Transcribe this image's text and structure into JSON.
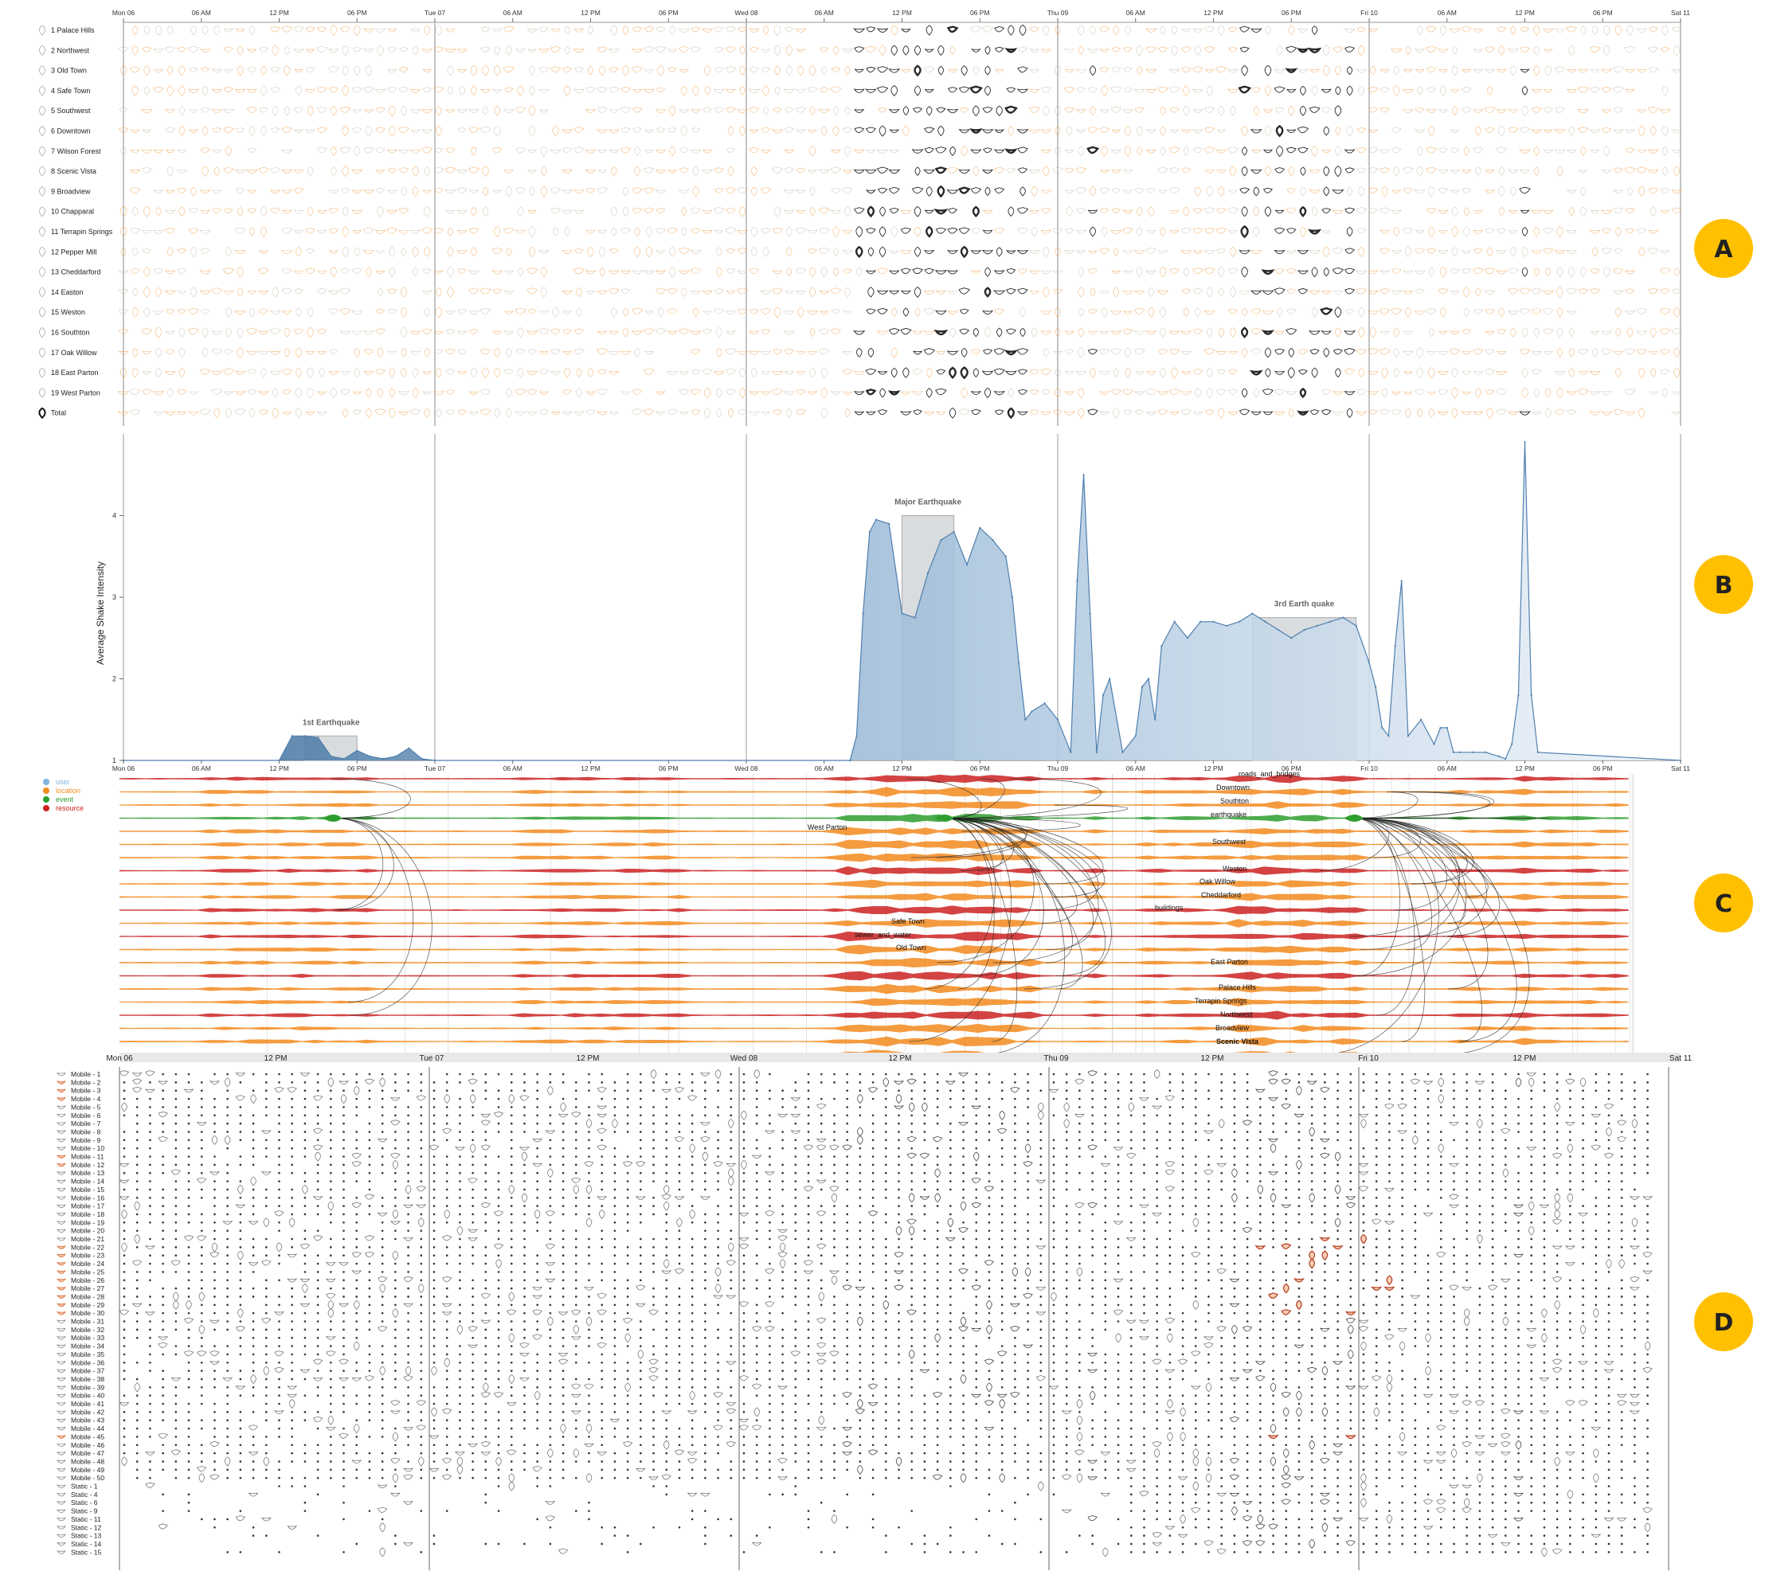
{
  "time_axis": {
    "ticks_full": [
      "Mon 06",
      "06 AM",
      "12 PM",
      "06 PM",
      "Tue 07",
      "06 AM",
      "12 PM",
      "06 PM",
      "Wed 08",
      "06 AM",
      "12 PM",
      "06 PM",
      "Thu 09",
      "06 AM",
      "12 PM",
      "06 PM",
      "Fri 10",
      "06 AM",
      "12 PM",
      "06 PM",
      "Sat 11"
    ],
    "ticks_c": [
      "Mon 06",
      "12 PM",
      "Tue 07",
      "12 PM",
      "Wed 08",
      "12 PM",
      "Thu 09",
      "12 PM",
      "Fri 10",
      "12 PM",
      "Sat 11"
    ],
    "ticks_c_hours": [
      0,
      12,
      24,
      36,
      48,
      60,
      72,
      84,
      96,
      108,
      120
    ]
  },
  "panel_a": {
    "badge": "A",
    "rows": [
      "1 Palace Hills",
      "2 Northwest",
      "3 Old Town",
      "4 Safe Town",
      "5 Southwest",
      "6 Downtown",
      "7 Wilson Forest",
      "8 Scenic Vista",
      "9 Broadview",
      "10 Chapparal",
      "11 Terrapin Springs",
      "12 Pepper Mill",
      "13 Cheddarford",
      "14 Easton",
      "15 Weston",
      "16 Southton",
      "17 Oak Willow",
      "18 East Parton",
      "19 West Parton",
      "Total"
    ],
    "colors": {
      "low": "#f0a050",
      "high": "#111111"
    }
  },
  "panel_b": {
    "badge": "B",
    "chart_data": {
      "type": "area",
      "ylabel": "Average Shake Intensity",
      "ylim": [
        1,
        5
      ],
      "yticks": [
        1,
        2,
        3,
        4
      ],
      "x_unit": "hours since Mon 06 00:00",
      "x": [
        0,
        12,
        13,
        14,
        15,
        16,
        17,
        18,
        19,
        20,
        21,
        22,
        23,
        24,
        56,
        56.5,
        57,
        57.5,
        58,
        59,
        60,
        61,
        62,
        63,
        64,
        65,
        66,
        67,
        68,
        68.5,
        69,
        69.5,
        70,
        71,
        72,
        73,
        73.5,
        74,
        74.5,
        75,
        75.5,
        76,
        77,
        78,
        78.5,
        79,
        79.5,
        80,
        81,
        82,
        83,
        84,
        85,
        86,
        87,
        88,
        89,
        90,
        91,
        92,
        93,
        94,
        95,
        96,
        96.5,
        97,
        97.5,
        98,
        98.5,
        99,
        100,
        101,
        101.5,
        102,
        102.5,
        103,
        104,
        105,
        106,
        106.5,
        107,
        107.5,
        108,
        108.5,
        109,
        120
      ],
      "y": [
        1,
        1,
        1.3,
        1.3,
        1.28,
        1.05,
        1.02,
        1.12,
        1.05,
        1.02,
        1.05,
        1.15,
        1.02,
        1,
        1,
        1.3,
        2.8,
        3.8,
        3.95,
        3.9,
        2.8,
        2.75,
        3.3,
        3.7,
        3.8,
        3.4,
        3.85,
        3.7,
        3.5,
        3.0,
        2.2,
        1.5,
        1.6,
        1.7,
        1.5,
        1.1,
        3.2,
        4.5,
        2.8,
        1.1,
        1.8,
        2.0,
        1.1,
        1.3,
        1.9,
        2.0,
        1.5,
        2.4,
        2.7,
        2.5,
        2.7,
        2.7,
        2.65,
        2.7,
        2.8,
        2.7,
        2.6,
        2.5,
        2.6,
        2.65,
        2.7,
        2.75,
        2.65,
        2.2,
        1.9,
        1.4,
        1.3,
        2.4,
        3.2,
        1.3,
        1.5,
        1.2,
        1.4,
        1.4,
        1.1,
        1.1,
        1.1,
        1.1,
        1.05,
        1.02,
        1.2,
        1.8,
        4.9,
        1.8,
        1.1,
        1
      ],
      "annotations": [
        {
          "label": "1st Earthquake",
          "x_start": 14,
          "x_end": 18,
          "y": 1.3
        },
        {
          "label": "Major Earthquake",
          "x_start": 60,
          "x_end": 64,
          "y": 4.0
        },
        {
          "label": "3rd Earth quake",
          "x_start": 87,
          "x_end": 95,
          "y": 2.75
        }
      ]
    }
  },
  "panel_c": {
    "badge": "C",
    "legend": [
      {
        "label": "user",
        "color": "#7fb3e0"
      },
      {
        "label": "location",
        "color": "#f28a1e"
      },
      {
        "label": "event",
        "color": "#2e9e2e"
      },
      {
        "label": "resource",
        "color": "#cc2222"
      }
    ],
    "node_labels": [
      "roads_and_bridges",
      "Downtown",
      "Southton",
      "earthquake",
      "West Parton",
      "Southwest",
      "Weston",
      "Oak Willow",
      "Cheddarford",
      "buildings",
      "Safe Town",
      "sewer_and_water",
      "Old Town",
      "East Parton",
      "Palace Hills",
      "Terrapin Springs",
      "Northwest",
      "Broadview",
      "Scenic Vista"
    ]
  },
  "panel_d": {
    "badge": "D",
    "rows": [
      "Mobile - 1",
      "Mobile - 2",
      "Mobile - 3",
      "Mobile - 4",
      "Mobile - 5",
      "Mobile - 6",
      "Mobile - 7",
      "Mobile - 8",
      "Mobile - 9",
      "Mobile - 10",
      "Mobile - 11",
      "Mobile - 12",
      "Mobile - 13",
      "Mobile - 14",
      "Mobile - 15",
      "Mobile - 16",
      "Mobile - 17",
      "Mobile - 18",
      "Mobile - 19",
      "Mobile - 20",
      "Mobile - 21",
      "Mobile - 22",
      "Mobile - 23",
      "Mobile - 24",
      "Mobile - 25",
      "Mobile - 26",
      "Mobile - 27",
      "Mobile - 28",
      "Mobile - 29",
      "Mobile - 30",
      "Mobile - 31",
      "Mobile - 32",
      "Mobile - 33",
      "Mobile - 34",
      "Mobile - 35",
      "Mobile - 36",
      "Mobile - 37",
      "Mobile - 38",
      "Mobile - 39",
      "Mobile - 40",
      "Mobile - 41",
      "Mobile - 42",
      "Mobile - 43",
      "Mobile - 44",
      "Mobile - 45",
      "Mobile - 46",
      "Mobile - 47",
      "Mobile - 48",
      "Mobile - 49",
      "Mobile - 50",
      "Static - 1",
      "Static - 4",
      "Static - 6",
      "Static - 9",
      "Static - 11",
      "Static - 12",
      "Static - 13",
      "Static - 14",
      "Static - 15"
    ]
  },
  "badge_color": "#ffc000"
}
